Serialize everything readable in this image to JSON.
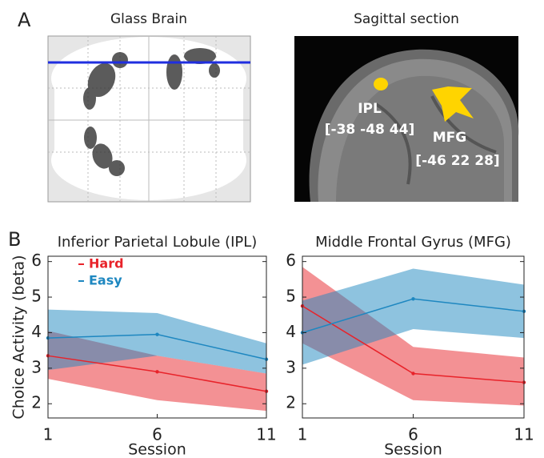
{
  "panel_a": {
    "label": "A",
    "images": [
      {
        "title": "Glass Brain"
      },
      {
        "title": "Sagittal section",
        "annotations": [
          "IPL",
          "[-38 -48 44]",
          "MFG",
          "[-46 22 28]"
        ]
      }
    ]
  },
  "panel_b": {
    "label": "B"
  },
  "chart_data": [
    {
      "type": "line",
      "title": "Inferior Parietal Lobule (IPL)",
      "xlabel": "Session",
      "ylabel": "Choice Activity (beta)",
      "x": [
        1,
        6,
        11
      ],
      "xlim": [
        1,
        11
      ],
      "xticks": [
        1,
        6,
        11
      ],
      "ylim": [
        1.6,
        6.15
      ],
      "yticks": [
        2,
        3,
        4,
        5,
        6
      ],
      "legend": "upper left",
      "series": [
        {
          "name": "Hard",
          "color": "#e8232a",
          "values": [
            3.35,
            2.9,
            2.35
          ],
          "lower": [
            2.7,
            2.1,
            1.8
          ],
          "upper": [
            4.05,
            3.35,
            2.85
          ]
        },
        {
          "name": "Easy",
          "color": "#1e87c0",
          "values": [
            3.85,
            3.95,
            3.25
          ],
          "lower": [
            2.95,
            3.35,
            2.85
          ],
          "upper": [
            4.65,
            4.55,
            3.7
          ]
        }
      ]
    },
    {
      "type": "line",
      "title": "Middle Frontal Gyrus (MFG)",
      "xlabel": "Session",
      "x": [
        1,
        6,
        11
      ],
      "xlim": [
        1,
        11
      ],
      "xticks": [
        1,
        6,
        11
      ],
      "ylim": [
        1.6,
        6.15
      ],
      "yticks": [
        2,
        3,
        4,
        5,
        6
      ],
      "series": [
        {
          "color": "#e8232a",
          "values": [
            4.75,
            2.85,
            2.6
          ],
          "lower": [
            3.7,
            2.1,
            1.95
          ],
          "upper": [
            5.85,
            3.6,
            3.3
          ]
        },
        {
          "color": "#1e87c0",
          "values": [
            4.0,
            4.95,
            4.6
          ],
          "lower": [
            3.1,
            4.1,
            3.85
          ],
          "upper": [
            4.9,
            5.8,
            5.35
          ]
        }
      ]
    }
  ]
}
